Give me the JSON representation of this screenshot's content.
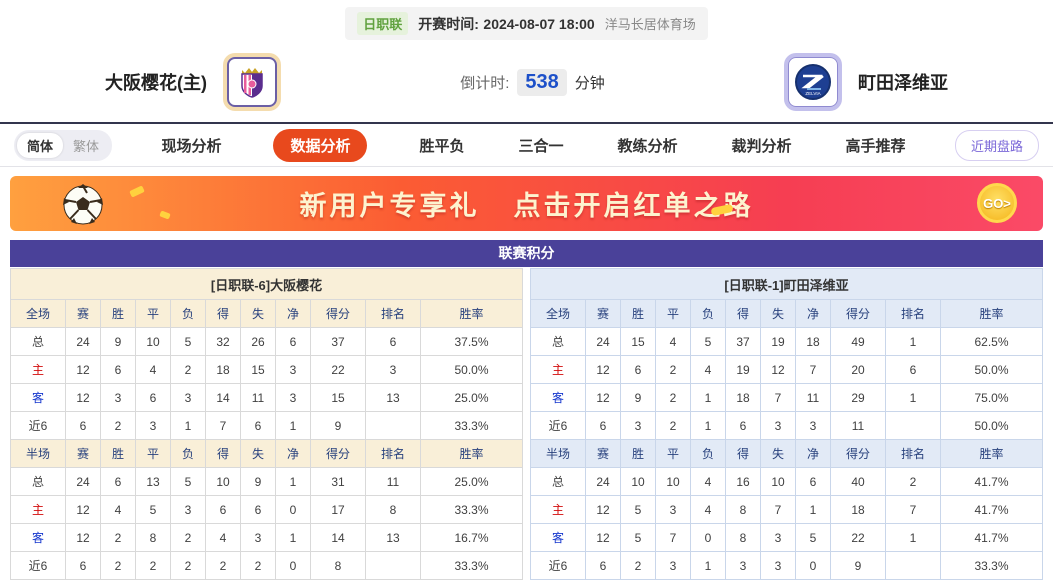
{
  "colors": {
    "accent_red": "#e8491d",
    "title_purple": "#4a4199",
    "left_header_bg": "#f9efd8",
    "right_header_bg": "#e2eaf6",
    "badge_green": "#61a23f",
    "countdown_blue": "#1d50c9",
    "link_purple": "#7b68d8"
  },
  "topbar": {
    "league_badge": "日职联",
    "kickoff_label": "开赛时间:",
    "kickoff_time": "2024-08-07 18:00",
    "venue": "洋马长居体育场"
  },
  "teams": {
    "home_name": "大阪樱花(主)",
    "away_name": "町田泽维亚",
    "countdown_label": "倒计时:",
    "countdown_value": "538",
    "countdown_unit": "分钟"
  },
  "nav": {
    "lang_options": [
      "简体",
      "繁体"
    ],
    "active_lang": "简体",
    "tabs": [
      "现场分析",
      "数据分析",
      "胜平负",
      "三合一",
      "教练分析",
      "裁判分析",
      "高手推荐"
    ],
    "active_tab": "数据分析",
    "recent_button": "近期盘路"
  },
  "banner": {
    "headline_1": "新用户专享礼",
    "headline_2": "点击开启红单之路",
    "go_label": "GO>"
  },
  "league_table": {
    "title": "联赛积分",
    "full_label": "全场",
    "half_label": "半场",
    "columns": [
      "赛",
      "胜",
      "平",
      "负",
      "得",
      "失",
      "净",
      "得分",
      "排名",
      "胜率"
    ],
    "left": {
      "team_header": "[日职联-6]大阪樱花",
      "full_rows": [
        {
          "label": "总",
          "style": "normal",
          "values": [
            "24",
            "9",
            "10",
            "5",
            "32",
            "26",
            "6",
            "37",
            "6",
            "37.5%"
          ]
        },
        {
          "label": "主",
          "style": "home",
          "values": [
            "12",
            "6",
            "4",
            "2",
            "18",
            "15",
            "3",
            "22",
            "3",
            "50.0%"
          ]
        },
        {
          "label": "客",
          "style": "away",
          "values": [
            "12",
            "3",
            "6",
            "3",
            "14",
            "11",
            "3",
            "15",
            "13",
            "25.0%"
          ]
        },
        {
          "label": "近6",
          "style": "normal",
          "values": [
            "6",
            "2",
            "3",
            "1",
            "7",
            "6",
            "1",
            "9",
            "",
            "33.3%"
          ]
        }
      ],
      "half_rows": [
        {
          "label": "总",
          "style": "normal",
          "values": [
            "24",
            "6",
            "13",
            "5",
            "10",
            "9",
            "1",
            "31",
            "11",
            "25.0%"
          ]
        },
        {
          "label": "主",
          "style": "home",
          "values": [
            "12",
            "4",
            "5",
            "3",
            "6",
            "6",
            "0",
            "17",
            "8",
            "33.3%"
          ]
        },
        {
          "label": "客",
          "style": "away",
          "values": [
            "12",
            "2",
            "8",
            "2",
            "4",
            "3",
            "1",
            "14",
            "13",
            "16.7%"
          ]
        },
        {
          "label": "近6",
          "style": "normal",
          "values": [
            "6",
            "2",
            "2",
            "2",
            "2",
            "2",
            "0",
            "8",
            "",
            "33.3%"
          ]
        }
      ]
    },
    "right": {
      "team_header": "[日职联-1]町田泽维亚",
      "full_rows": [
        {
          "label": "总",
          "style": "normal",
          "values": [
            "24",
            "15",
            "4",
            "5",
            "37",
            "19",
            "18",
            "49",
            "1",
            "62.5%"
          ]
        },
        {
          "label": "主",
          "style": "home",
          "values": [
            "12",
            "6",
            "2",
            "4",
            "19",
            "12",
            "7",
            "20",
            "6",
            "50.0%"
          ]
        },
        {
          "label": "客",
          "style": "away",
          "values": [
            "12",
            "9",
            "2",
            "1",
            "18",
            "7",
            "11",
            "29",
            "1",
            "75.0%"
          ]
        },
        {
          "label": "近6",
          "style": "normal",
          "values": [
            "6",
            "3",
            "2",
            "1",
            "6",
            "3",
            "3",
            "11",
            "",
            "50.0%"
          ]
        }
      ],
      "half_rows": [
        {
          "label": "总",
          "style": "normal",
          "values": [
            "24",
            "10",
            "10",
            "4",
            "16",
            "10",
            "6",
            "40",
            "2",
            "41.7%"
          ]
        },
        {
          "label": "主",
          "style": "home",
          "values": [
            "12",
            "5",
            "3",
            "4",
            "8",
            "7",
            "1",
            "18",
            "7",
            "41.7%"
          ]
        },
        {
          "label": "客",
          "style": "away",
          "values": [
            "12",
            "5",
            "7",
            "0",
            "8",
            "3",
            "5",
            "22",
            "1",
            "41.7%"
          ]
        },
        {
          "label": "近6",
          "style": "normal",
          "values": [
            "6",
            "2",
            "3",
            "1",
            "3",
            "3",
            "0",
            "9",
            "",
            "33.3%"
          ]
        }
      ]
    }
  }
}
